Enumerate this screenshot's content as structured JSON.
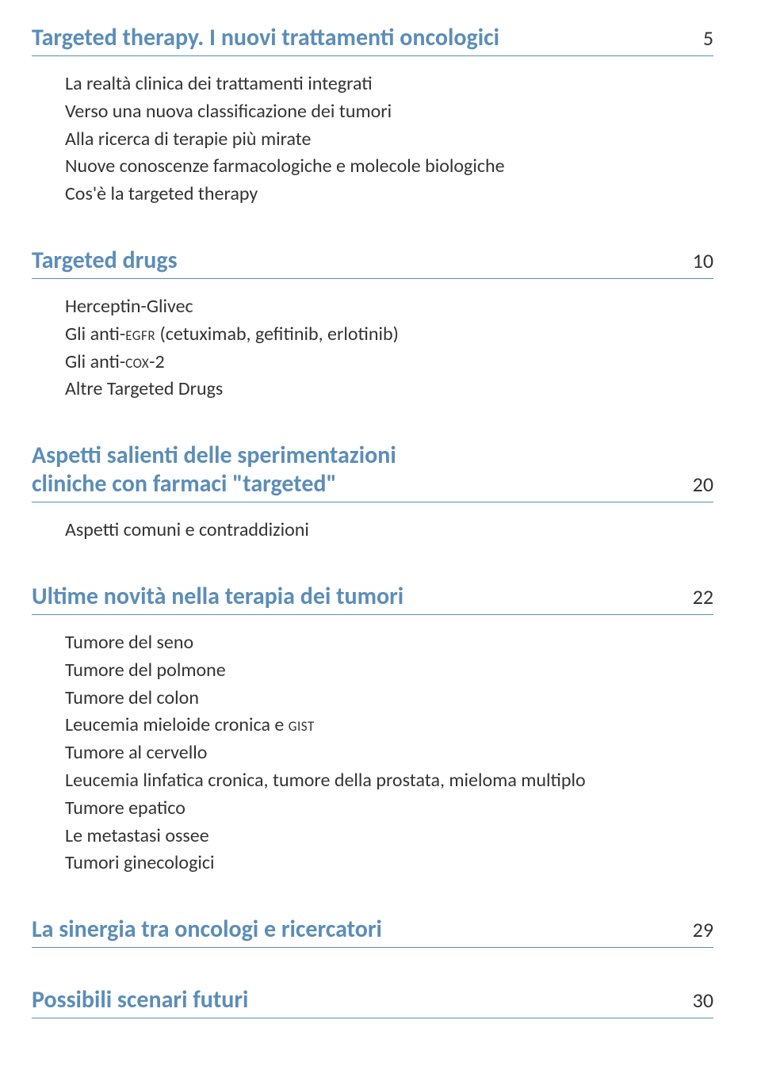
{
  "colors": {
    "accent": "#5b8db8",
    "text": "#333333",
    "rule": "#5b8db8",
    "background": "#ffffff"
  },
  "typography": {
    "title_fontsize_pt": 22,
    "item_fontsize_pt": 18,
    "page_fontsize_pt": 19,
    "title_weight": 600,
    "item_weight": 300
  },
  "sections": [
    {
      "title": "Targeted therapy. I nuovi trattamenti oncologici",
      "page": "5",
      "items": [
        "La realtà clinica dei trattamenti integrati",
        "Verso una nuova classificazione dei tumori",
        "Alla ricerca di terapie più mirate",
        "Nuove conoscenze farmacologiche e molecole biologiche",
        "Cos'è la targeted therapy"
      ]
    },
    {
      "title": "Targeted drugs",
      "page": "10",
      "items_html": [
        "Herceptin-Glivec",
        "Gli anti-<span class=\"sc\">egfr</span> (cetuximab, gefitinib, erlotinib)",
        "Gli anti-<span class=\"sc\">cox</span>-2",
        "Altre Targeted Drugs"
      ]
    },
    {
      "title_line1": "Aspetti salienti delle sperimentazioni",
      "title_line2": "cliniche con farmaci \"targeted\"",
      "page": "20",
      "items": [
        "Aspetti comuni e contraddizioni"
      ]
    },
    {
      "title": "Ultime novità nella terapia dei tumori",
      "page": "22",
      "items_html": [
        "Tumore del seno",
        "Tumore del polmone",
        "Tumore del colon",
        "Leucemia mieloide cronica e <span class=\"sc\">gist</span>",
        "Tumore al cervello",
        "Leucemia linfatica cronica, tumore della prostata, mieloma multiplo",
        "Tumore epatico",
        "Le metastasi ossee",
        "Tumori ginecologici"
      ]
    },
    {
      "title": "La sinergia tra oncologi e ricercatori",
      "page": "29",
      "items": []
    },
    {
      "title": "Possibili scenari futuri",
      "page": "30",
      "items": []
    }
  ]
}
